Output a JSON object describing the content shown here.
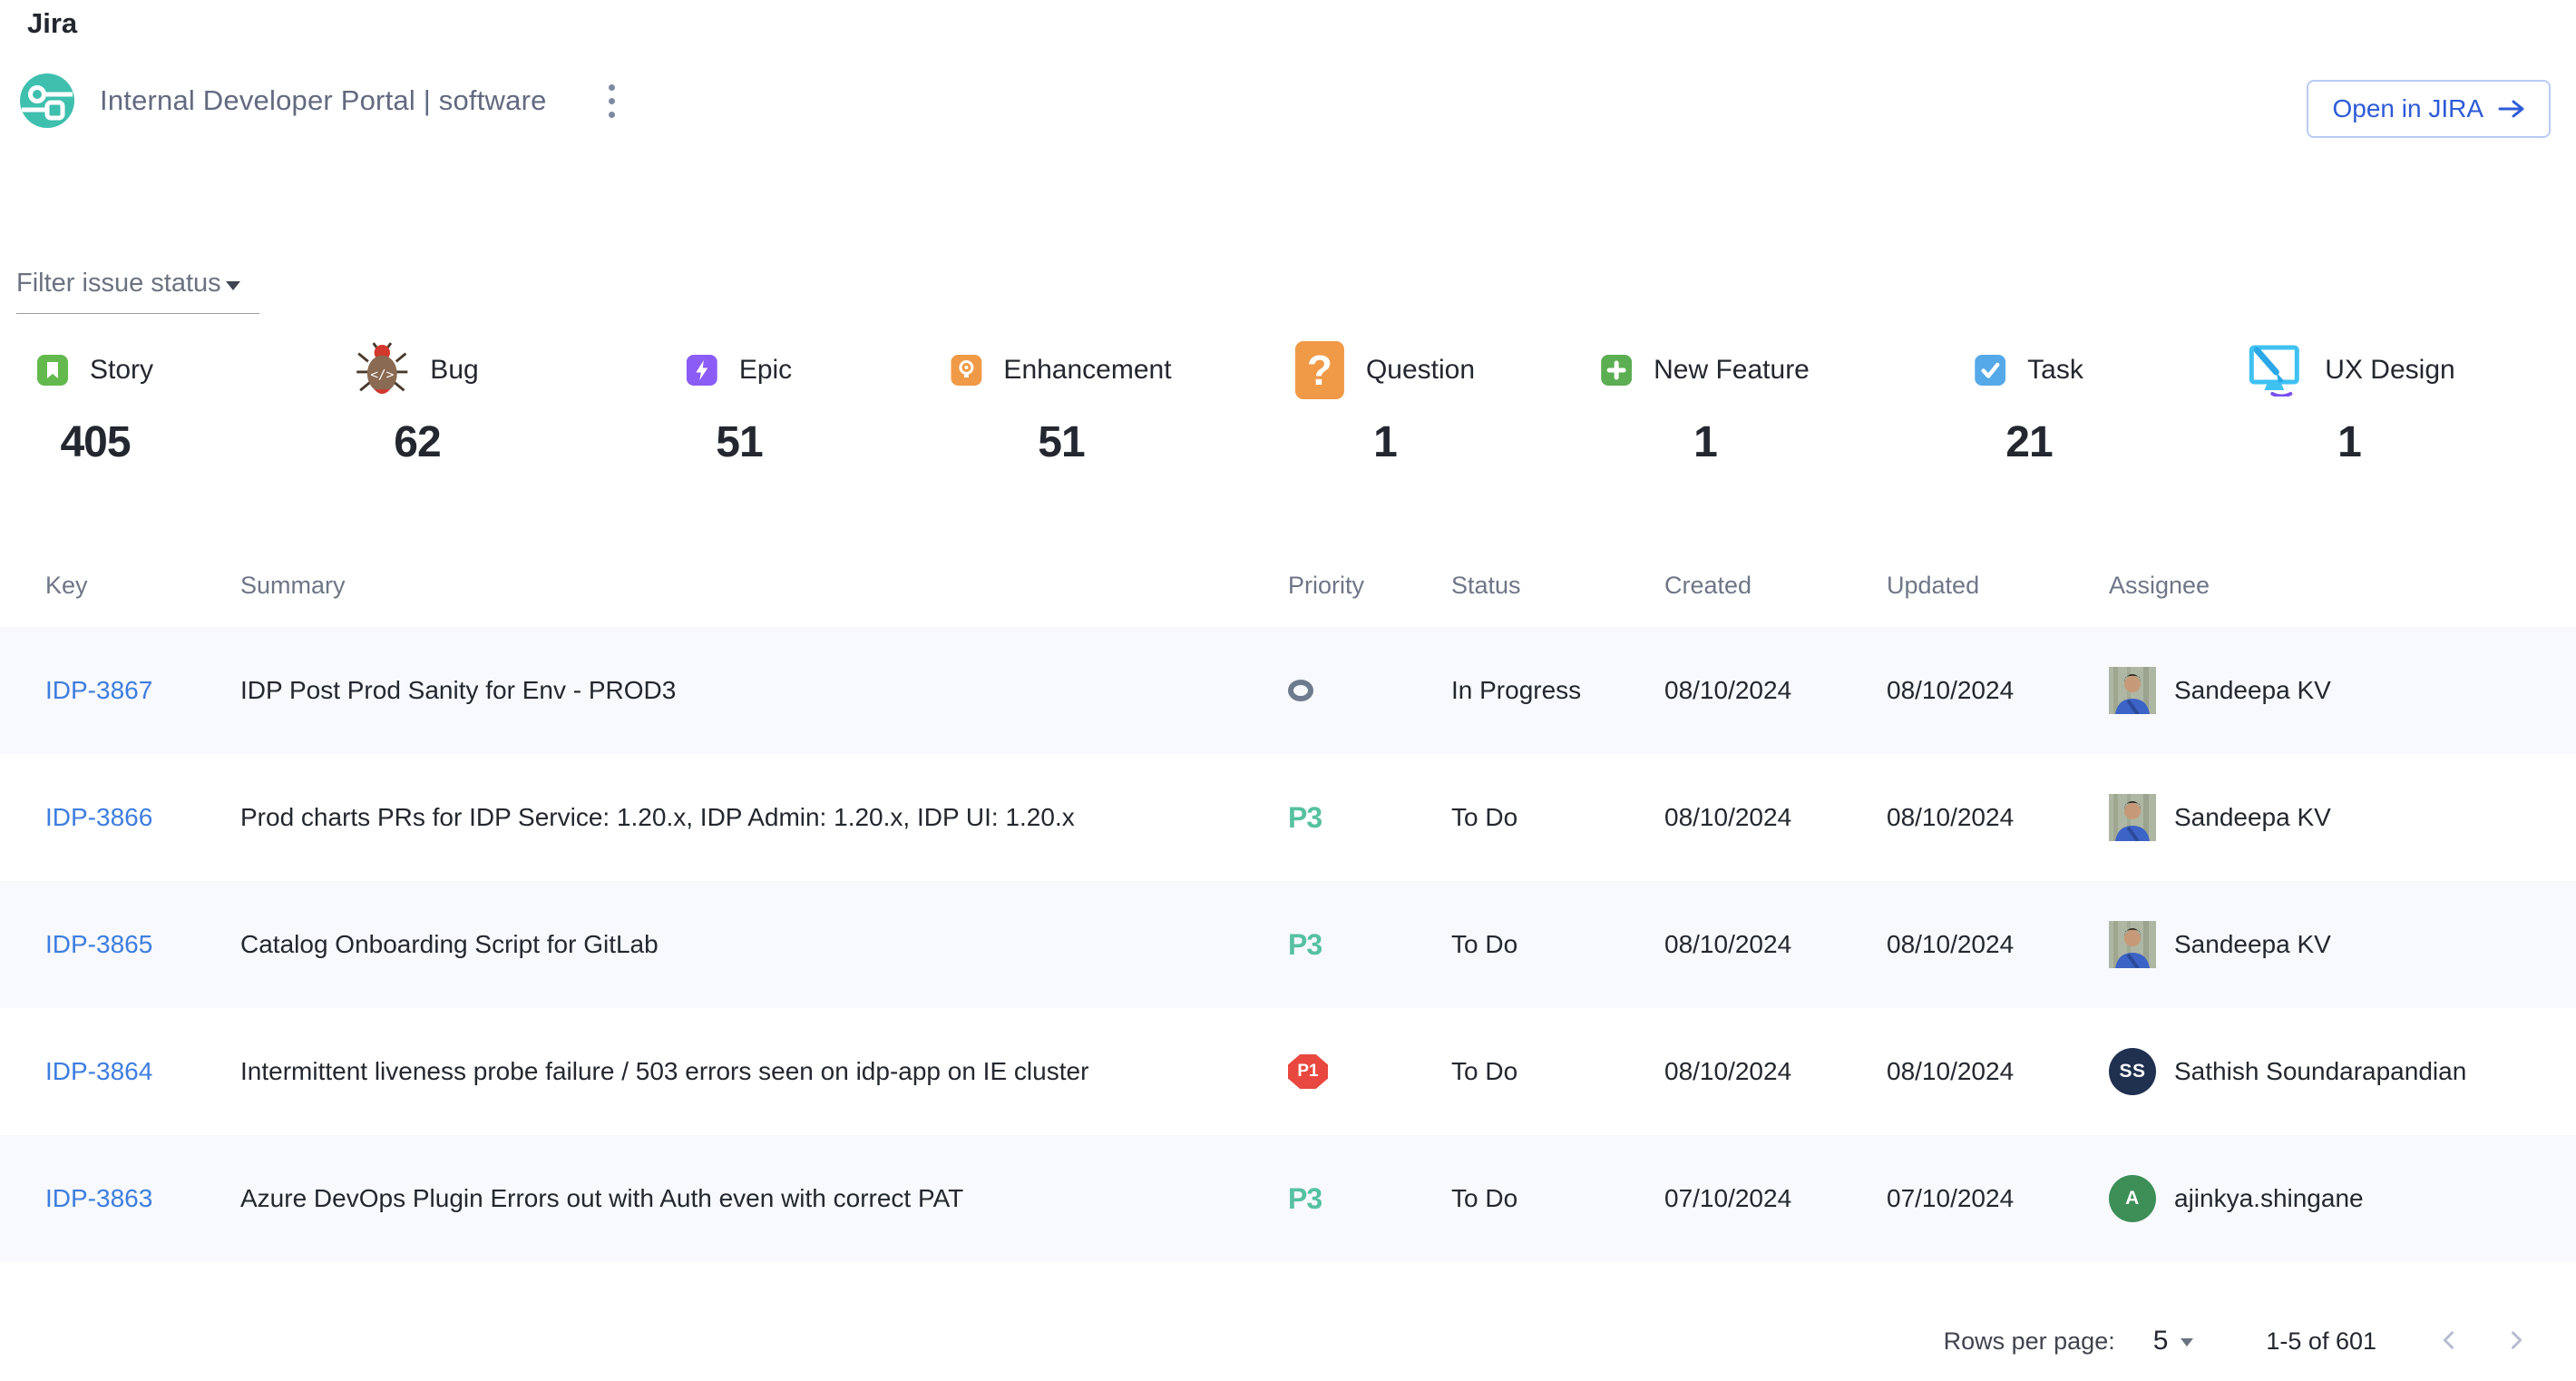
{
  "page": {
    "title": "Jira"
  },
  "header": {
    "entity_name": "Internal Developer Portal | software",
    "open_in_jira_label": "Open in JIRA"
  },
  "filter": {
    "label": "Filter issue status"
  },
  "issue_type_counts": [
    {
      "label": "Story",
      "count": "405",
      "icon": "story-icon",
      "color": "#63b94d"
    },
    {
      "label": "Bug",
      "count": "62",
      "icon": "bug-icon",
      "color": "#8a6a52"
    },
    {
      "label": "Epic",
      "count": "51",
      "icon": "epic-icon",
      "color": "#8b5cf6"
    },
    {
      "label": "Enhancement",
      "count": "51",
      "icon": "enhancement-icon",
      "color": "#f09a47"
    },
    {
      "label": "Question",
      "count": "1",
      "icon": "question-icon",
      "color": "#f09a47"
    },
    {
      "label": "New Feature",
      "count": "1",
      "icon": "new-feature-icon",
      "color": "#5cae53"
    },
    {
      "label": "Task",
      "count": "21",
      "icon": "task-icon",
      "color": "#55a9e8"
    },
    {
      "label": "UX Design",
      "count": "1",
      "icon": "ux-design-icon",
      "color": "#3fc1f2"
    }
  ],
  "table": {
    "columns": [
      "Key",
      "Summary",
      "Priority",
      "Status",
      "Created",
      "Updated",
      "Assignee"
    ],
    "rows": [
      {
        "key": "IDP-3867",
        "summary": "IDP Post Prod Sanity for Env - PROD3",
        "priority": "",
        "status": "In Progress",
        "created": "08/10/2024",
        "updated": "08/10/2024",
        "assignee": "Sandeepa KV",
        "avatar": {
          "type": "photo"
        }
      },
      {
        "key": "IDP-3866",
        "summary": "Prod charts PRs for IDP Service: 1.20.x, IDP Admin: 1.20.x, IDP UI: 1.20.x",
        "priority": "P3",
        "status": "To Do",
        "created": "08/10/2024",
        "updated": "08/10/2024",
        "assignee": "Sandeepa KV",
        "avatar": {
          "type": "photo"
        }
      },
      {
        "key": "IDP-3865",
        "summary": "Catalog Onboarding Script for GitLab",
        "priority": "P3",
        "status": "To Do",
        "created": "08/10/2024",
        "updated": "08/10/2024",
        "assignee": "Sandeepa KV",
        "avatar": {
          "type": "photo"
        }
      },
      {
        "key": "IDP-3864",
        "summary": "Intermittent liveness probe failure / 503 errors seen on idp-app on IE cluster",
        "priority": "P1",
        "status": "To Do",
        "created": "08/10/2024",
        "updated": "08/10/2024",
        "assignee": "Sathish Soundarapandian",
        "avatar": {
          "type": "initials",
          "text": "SS",
          "color": "#20304f"
        }
      },
      {
        "key": "IDP-3863",
        "summary": "Azure DevOps Plugin Errors out with Auth even with correct PAT",
        "priority": "P3",
        "status": "To Do",
        "created": "07/10/2024",
        "updated": "07/10/2024",
        "assignee": "ajinkya.shingane",
        "avatar": {
          "type": "initials",
          "text": "A",
          "color": "#3e8e58"
        }
      }
    ]
  },
  "pagination": {
    "rows_per_page_label": "Rows per page:",
    "rows_per_page": "5",
    "range_label": "1-5 of 601"
  },
  "colors": {
    "priority_p3": "#56c1a1",
    "priority_p1": "#e8483f",
    "key_link": "#3e7de0",
    "accent_blue": "#2d5bd7",
    "logo_teal": "#3fbfae",
    "row_alt_bg": "#f7f9fc"
  }
}
